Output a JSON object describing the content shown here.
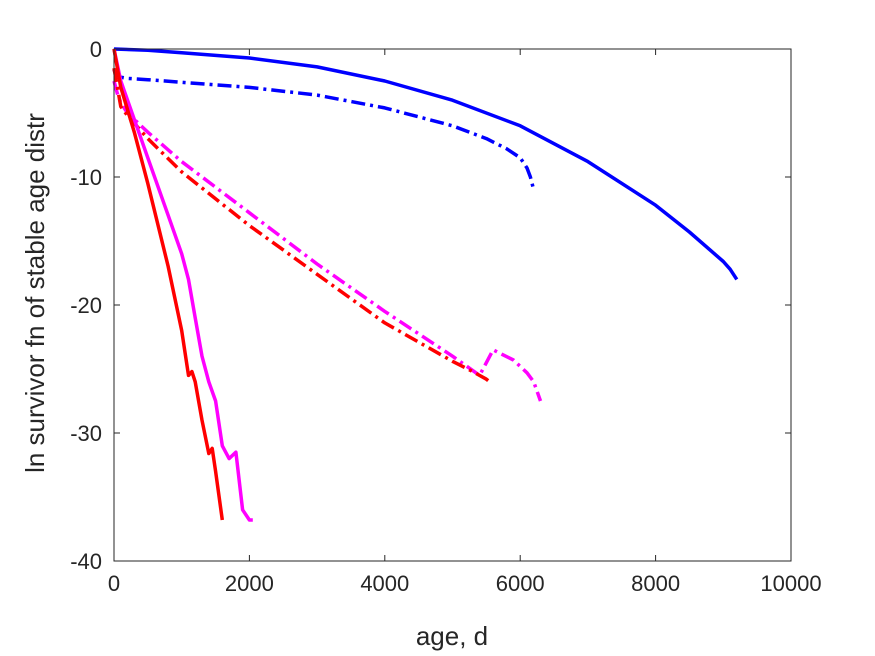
{
  "chart_data": {
    "type": "line",
    "title": "",
    "xlabel": "age, d",
    "ylabel": "ln survivor fn of stable age distr",
    "xlim": [
      0,
      10000
    ],
    "ylim": [
      -40,
      0
    ],
    "xticks": [
      0,
      2000,
      4000,
      6000,
      8000,
      10000
    ],
    "xtick_labels": [
      "0",
      "2000",
      "4000",
      "6000",
      "8000",
      "10000"
    ],
    "yticks": [
      0,
      -10,
      -20,
      -30,
      -40
    ],
    "ytick_labels": [
      "0",
      "-10",
      "-20",
      "-30",
      "-40"
    ],
    "grid": false,
    "box": true,
    "series": [
      {
        "color": "#0000ff",
        "style": "solid",
        "x": [
          0,
          500,
          1000,
          2000,
          3000,
          4000,
          5000,
          6000,
          7000,
          8000,
          8500,
          9000,
          9100,
          9200
        ],
        "y": [
          0,
          -0.1,
          -0.3,
          -0.7,
          -1.4,
          -2.5,
          -4.0,
          -6.0,
          -8.8,
          -12.2,
          -14.3,
          -16.6,
          -17.2,
          -18.0
        ]
      },
      {
        "color": "#0000ff",
        "style": "dashdot",
        "x": [
          0,
          30,
          100,
          200,
          500,
          1000,
          2000,
          3000,
          4000,
          5000,
          5500,
          5800,
          6000,
          6100,
          6150,
          6200
        ],
        "y": [
          -1.6,
          -2.0,
          -2.2,
          -2.3,
          -2.4,
          -2.6,
          -3.0,
          -3.6,
          -4.6,
          -6.0,
          -7.0,
          -7.8,
          -8.5,
          -9.3,
          -10.0,
          -11.0
        ]
      },
      {
        "color": "#ff00ff",
        "style": "dashdot",
        "x": [
          0,
          50,
          100,
          200,
          500,
          1000,
          2000,
          3000,
          4000,
          5000,
          5400,
          5600,
          5900,
          6100,
          6200,
          6300
        ],
        "y": [
          -2.5,
          -3.5,
          -4.2,
          -5.0,
          -6.5,
          -8.8,
          -12.8,
          -16.8,
          -20.5,
          -24.0,
          -25.5,
          -23.5,
          -24.3,
          -25.3,
          -26.0,
          -27.5
        ]
      },
      {
        "color": "#ff0000",
        "style": "dashdot",
        "x": [
          0,
          50,
          100,
          200,
          500,
          1000,
          2000,
          3000,
          4000,
          5000,
          5300,
          5500,
          5550
        ],
        "y": [
          -1.5,
          -3.0,
          -4.5,
          -5.2,
          -7.0,
          -9.6,
          -13.8,
          -17.6,
          -21.4,
          -24.4,
          -25.2,
          -25.8,
          -26.0
        ]
      },
      {
        "color": "#ff00ff",
        "style": "solid",
        "x": [
          0,
          100,
          300,
          500,
          800,
          1000,
          1100,
          1200,
          1300,
          1400,
          1500,
          1600,
          1700,
          1800,
          1900,
          2000,
          2050
        ],
        "y": [
          0,
          -2.5,
          -5.5,
          -8.5,
          -13.0,
          -16.0,
          -18.0,
          -21.0,
          -24.0,
          -26.0,
          -27.5,
          -31.0,
          -32.0,
          -31.5,
          -36.0,
          -36.8,
          -36.8
        ]
      },
      {
        "color": "#ff0000",
        "style": "solid",
        "x": [
          0,
          100,
          300,
          500,
          800,
          1000,
          1100,
          1150,
          1200,
          1300,
          1400,
          1450,
          1500,
          1600
        ],
        "y": [
          0,
          -3.0,
          -6.5,
          -10.5,
          -17.0,
          -22.0,
          -25.5,
          -25.2,
          -26.0,
          -29.0,
          -31.6,
          -31.2,
          -33.0,
          -36.8
        ]
      }
    ]
  }
}
